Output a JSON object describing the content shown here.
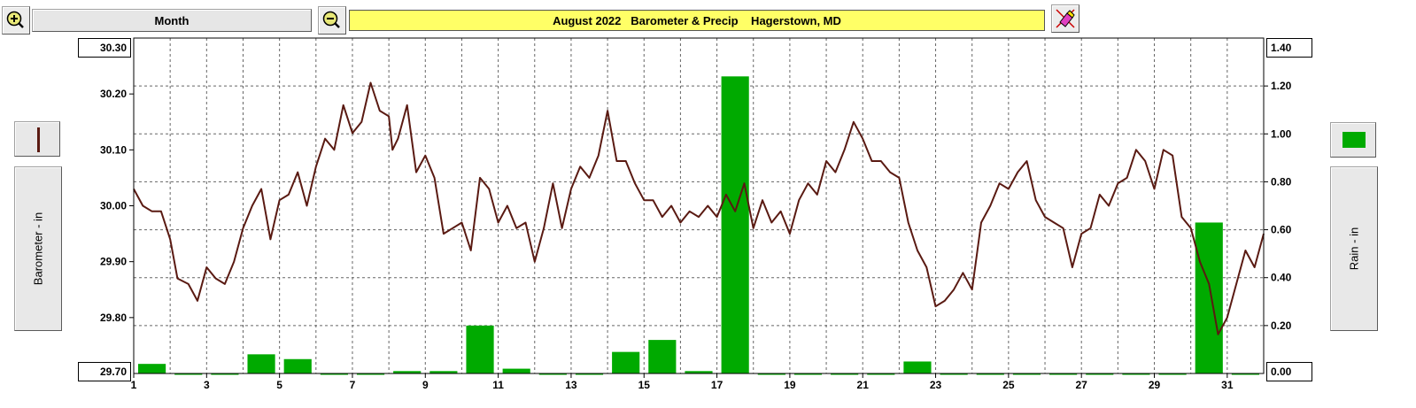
{
  "toolbar": {
    "zoom_in_icon": "zoom-in-icon",
    "zoom_out_icon": "zoom-out-icon",
    "period": "Month",
    "title": "August 2022   Barometer & Precip    Hagerstown, MD",
    "eraser_icon": "eraser-icon"
  },
  "left_axis_label": "Barometer - in",
  "right_axis_label": "Rain - in",
  "colors": {
    "pressure": "#5a1a12",
    "rain": "#00aa00",
    "title_bg": "#ffff66"
  },
  "chart_data": {
    "type": "bar+line",
    "x": {
      "min": 1,
      "max": 32,
      "tick_labels": [
        "1",
        "3",
        "5",
        "7",
        "9",
        "11",
        "13",
        "15",
        "17",
        "19",
        "21",
        "23",
        "25",
        "27",
        "29",
        "31"
      ]
    },
    "y_left": {
      "label": "Barometer - in",
      "min": 29.7,
      "max": 30.3,
      "tick_labels": [
        "30.30",
        "30.20",
        "30.10",
        "30.00",
        "29.90",
        "29.80",
        "29.70"
      ]
    },
    "y_right": {
      "label": "Rain - in",
      "min": 0.0,
      "max": 1.4,
      "tick_labels": [
        "1.40",
        "1.20",
        "1.00",
        "0.80",
        "0.60",
        "0.40",
        "0.20",
        "0.00"
      ]
    },
    "grid": true,
    "series": [
      {
        "type": "line",
        "axis": "left",
        "color": "#5a1a12",
        "points": [
          [
            1.0,
            30.03
          ],
          [
            1.25,
            30.0
          ],
          [
            1.5,
            29.99
          ],
          [
            1.75,
            29.99
          ],
          [
            2.0,
            29.94
          ],
          [
            2.2,
            29.87
          ],
          [
            2.5,
            29.86
          ],
          [
            2.75,
            29.83
          ],
          [
            3.0,
            29.89
          ],
          [
            3.25,
            29.87
          ],
          [
            3.5,
            29.86
          ],
          [
            3.75,
            29.9
          ],
          [
            4.0,
            29.96
          ],
          [
            4.25,
            30.0
          ],
          [
            4.5,
            30.03
          ],
          [
            4.75,
            29.94
          ],
          [
            5.0,
            30.01
          ],
          [
            5.25,
            30.02
          ],
          [
            5.5,
            30.06
          ],
          [
            5.75,
            30.0
          ],
          [
            6.0,
            30.07
          ],
          [
            6.25,
            30.12
          ],
          [
            6.5,
            30.1
          ],
          [
            6.75,
            30.18
          ],
          [
            7.0,
            30.13
          ],
          [
            7.25,
            30.15
          ],
          [
            7.5,
            30.22
          ],
          [
            7.75,
            30.17
          ],
          [
            8.0,
            30.16
          ],
          [
            8.1,
            30.1
          ],
          [
            8.25,
            30.12
          ],
          [
            8.5,
            30.18
          ],
          [
            8.75,
            30.06
          ],
          [
            9.0,
            30.09
          ],
          [
            9.25,
            30.05
          ],
          [
            9.5,
            29.95
          ],
          [
            9.75,
            29.96
          ],
          [
            10.0,
            29.97
          ],
          [
            10.25,
            29.92
          ],
          [
            10.5,
            30.05
          ],
          [
            10.75,
            30.03
          ],
          [
            11.0,
            29.97
          ],
          [
            11.25,
            30.0
          ],
          [
            11.5,
            29.96
          ],
          [
            11.75,
            29.97
          ],
          [
            12.0,
            29.9
          ],
          [
            12.25,
            29.96
          ],
          [
            12.5,
            30.04
          ],
          [
            12.75,
            29.96
          ],
          [
            13.0,
            30.03
          ],
          [
            13.25,
            30.07
          ],
          [
            13.5,
            30.05
          ],
          [
            13.75,
            30.09
          ],
          [
            14.0,
            30.17
          ],
          [
            14.25,
            30.08
          ],
          [
            14.5,
            30.08
          ],
          [
            14.75,
            30.04
          ],
          [
            15.0,
            30.01
          ],
          [
            15.25,
            30.01
          ],
          [
            15.5,
            29.98
          ],
          [
            15.75,
            30.0
          ],
          [
            16.0,
            29.97
          ],
          [
            16.25,
            29.99
          ],
          [
            16.5,
            29.98
          ],
          [
            16.75,
            30.0
          ],
          [
            17.0,
            29.98
          ],
          [
            17.25,
            30.02
          ],
          [
            17.5,
            29.99
          ],
          [
            17.75,
            30.04
          ],
          [
            18.0,
            29.96
          ],
          [
            18.25,
            30.01
          ],
          [
            18.5,
            29.97
          ],
          [
            18.75,
            29.99
          ],
          [
            19.0,
            29.95
          ],
          [
            19.25,
            30.01
          ],
          [
            19.5,
            30.04
          ],
          [
            19.75,
            30.02
          ],
          [
            20.0,
            30.08
          ],
          [
            20.25,
            30.06
          ],
          [
            20.5,
            30.1
          ],
          [
            20.75,
            30.15
          ],
          [
            21.0,
            30.12
          ],
          [
            21.25,
            30.08
          ],
          [
            21.5,
            30.08
          ],
          [
            21.75,
            30.06
          ],
          [
            22.0,
            30.05
          ],
          [
            22.25,
            29.97
          ],
          [
            22.5,
            29.92
          ],
          [
            22.75,
            29.89
          ],
          [
            23.0,
            29.82
          ],
          [
            23.25,
            29.83
          ],
          [
            23.5,
            29.85
          ],
          [
            23.75,
            29.88
          ],
          [
            24.0,
            29.85
          ],
          [
            24.25,
            29.97
          ],
          [
            24.5,
            30.0
          ],
          [
            24.75,
            30.04
          ],
          [
            25.0,
            30.03
          ],
          [
            25.25,
            30.06
          ],
          [
            25.5,
            30.08
          ],
          [
            25.75,
            30.01
          ],
          [
            26.0,
            29.98
          ],
          [
            26.25,
            29.97
          ],
          [
            26.5,
            29.96
          ],
          [
            26.75,
            29.89
          ],
          [
            27.0,
            29.95
          ],
          [
            27.25,
            29.96
          ],
          [
            27.5,
            30.02
          ],
          [
            27.75,
            30.0
          ],
          [
            28.0,
            30.04
          ],
          [
            28.25,
            30.05
          ],
          [
            28.5,
            30.1
          ],
          [
            28.75,
            30.08
          ],
          [
            29.0,
            30.03
          ],
          [
            29.25,
            30.1
          ],
          [
            29.5,
            30.09
          ],
          [
            29.75,
            29.98
          ],
          [
            30.0,
            29.96
          ],
          [
            30.25,
            29.9
          ],
          [
            30.5,
            29.86
          ],
          [
            30.75,
            29.77
          ],
          [
            31.0,
            29.8
          ],
          [
            31.25,
            29.86
          ],
          [
            31.5,
            29.92
          ],
          [
            31.75,
            29.89
          ],
          [
            32.0,
            29.95
          ]
        ]
      },
      {
        "type": "bar",
        "axis": "right",
        "color": "#00aa00",
        "values": [
          0.04,
          0.0,
          0.0,
          0.08,
          0.06,
          0.0,
          0.0,
          0.01,
          0.01,
          0.2,
          0.02,
          0.0,
          0.0,
          0.09,
          0.14,
          0.01,
          1.24,
          0.0,
          0.0,
          0.0,
          0.0,
          0.05,
          0.0,
          0.0,
          0.0,
          0.0,
          0.0,
          0.0,
          0.0,
          0.63,
          0.0
        ]
      }
    ]
  }
}
